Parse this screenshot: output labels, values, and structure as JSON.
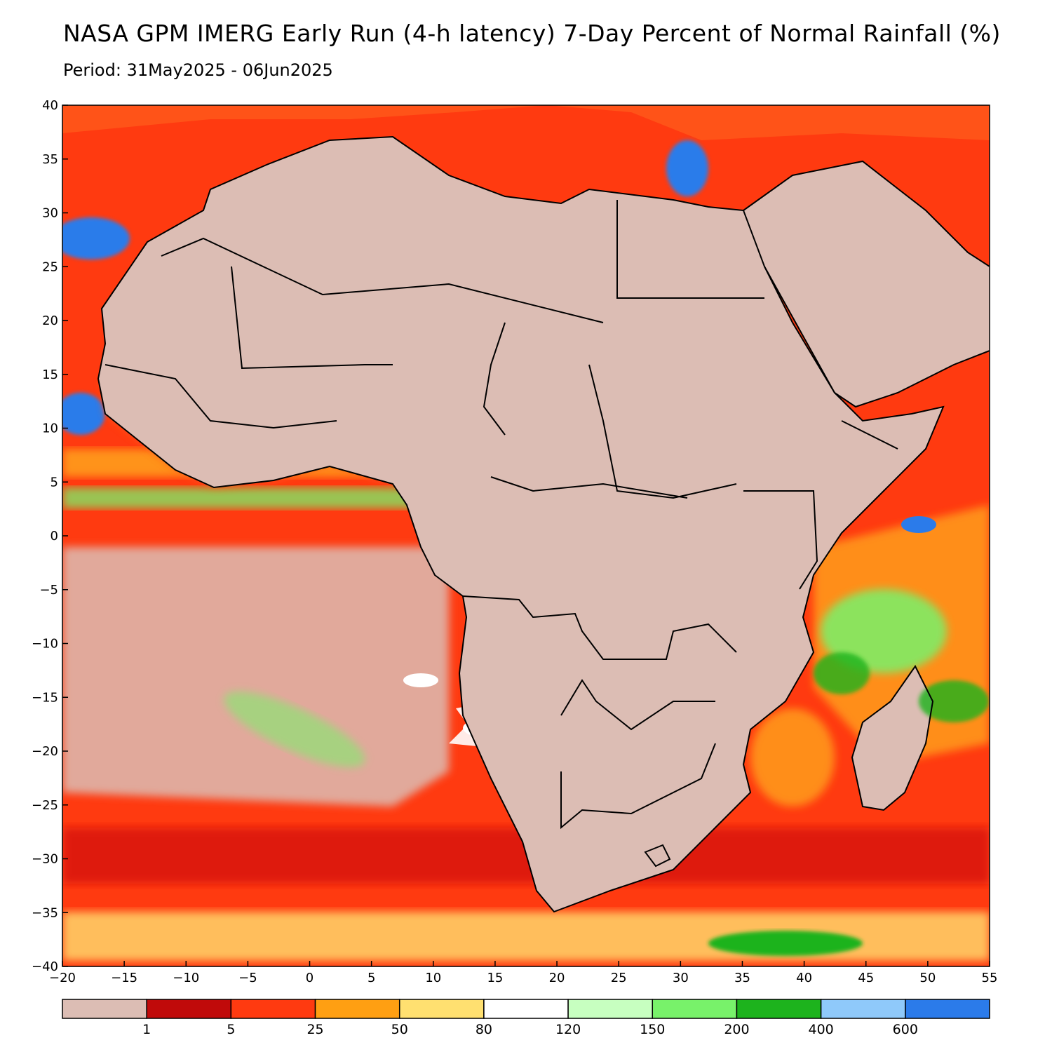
{
  "title": "NASA GPM IMERG Early Run (4-h latency) 7-Day Percent of Normal Rainfall (%)",
  "subtitle": "Period: 31May2025 - 06Jun2025",
  "map": {
    "lon_range": [
      -20,
      55
    ],
    "lat_range": [
      -40,
      40
    ],
    "lon_ticks": [
      -20,
      -15,
      -10,
      -5,
      0,
      5,
      10,
      15,
      20,
      25,
      30,
      35,
      40,
      45,
      50,
      55
    ],
    "lat_ticks": [
      40,
      35,
      30,
      25,
      20,
      15,
      10,
      5,
      0,
      -5,
      -10,
      -15,
      -20,
      -25,
      -30,
      -35,
      -40
    ],
    "lon_tick_labels": [
      "−20",
      "−15",
      "−10",
      "−5",
      "0",
      "5",
      "10",
      "15",
      "20",
      "25",
      "30",
      "35",
      "40",
      "45",
      "50",
      "55"
    ],
    "lat_tick_labels": [
      "40",
      "35",
      "30",
      "25",
      "20",
      "15",
      "10",
      "5",
      "0",
      "−5",
      "−10",
      "−15",
      "−20",
      "−25",
      "−30",
      "−35",
      "−40"
    ],
    "land_color": "#dcbdb4",
    "features": [
      {
        "name": "sahara-north",
        "color": "#dcbdb4"
      },
      {
        "name": "west-africa-band",
        "color": "#ff5a1a"
      },
      {
        "name": "sahel-green",
        "color": "#2fb52f"
      },
      {
        "name": "niger-chad-blue",
        "color": "#2f78e6"
      },
      {
        "name": "central-africa-green",
        "color": "#79f46f"
      },
      {
        "name": "indian-ocean-wet",
        "color": "#ffa31f"
      },
      {
        "name": "southern-ocean-band",
        "color": "#d10c0c"
      }
    ]
  },
  "colorbar": {
    "colors": [
      "#dcbdb4",
      "#c00a0a",
      "#ff3a10",
      "#ff9f12",
      "#ffe070",
      "#ffffff",
      "#c7ffc0",
      "#78f26a",
      "#1db31d",
      "#8fc9fa",
      "#2b7bea"
    ],
    "labels": [
      "1",
      "5",
      "25",
      "50",
      "80",
      "120",
      "150",
      "200",
      "400",
      "600"
    ]
  }
}
